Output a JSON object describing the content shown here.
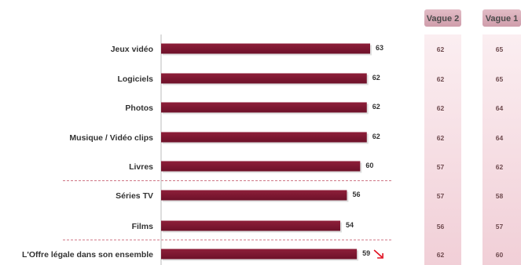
{
  "chart_data": {
    "type": "bar",
    "orientation": "horizontal",
    "categories": [
      "Jeux vidéo",
      "Logiciels",
      "Photos",
      "Musique / Vidéo clips",
      "Livres",
      "Séries TV",
      "Films",
      "L'Offre légale dans son ensemble"
    ],
    "values": [
      63,
      62,
      62,
      62,
      60,
      56,
      54,
      59
    ],
    "value_labels": [
      "63",
      "62",
      "62",
      "62",
      "60",
      "56",
      "54",
      "59"
    ],
    "xlim": [
      0,
      70
    ],
    "bar_color": "#7b1530",
    "trend_arrow": {
      "category_index": 7,
      "direction": "down",
      "color": "#e01020"
    },
    "separators_after_index": [
      4,
      6
    ],
    "comparison_columns": [
      {
        "header": "Vague 2",
        "values": [
          "62",
          "62",
          "62",
          "62",
          "57",
          "57",
          "56",
          "62"
        ]
      },
      {
        "header": "Vague 1",
        "values": [
          "65",
          "65",
          "64",
          "64",
          "62",
          "58",
          "57",
          "60"
        ]
      }
    ],
    "colors": {
      "header_fill": "#d4a4b0",
      "column_fill_top": "#f8e6ea",
      "column_fill_bottom": "#f1cfd7"
    }
  }
}
